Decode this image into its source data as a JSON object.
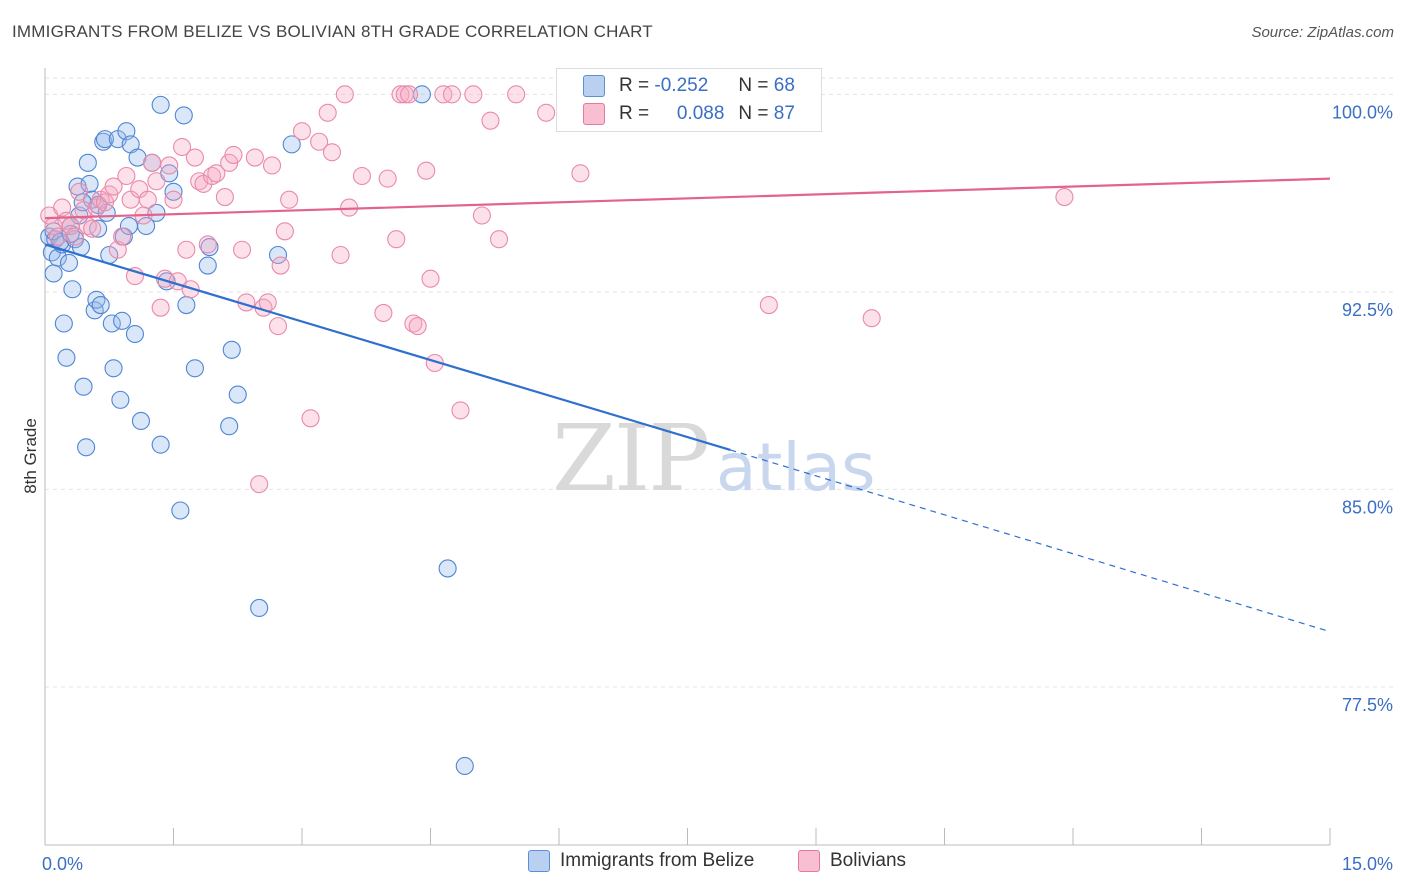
{
  "header": {
    "title": "IMMIGRANTS FROM BELIZE VS BOLIVIAN 8TH GRADE CORRELATION CHART",
    "source": "Source: ZipAtlas.com"
  },
  "legend": {
    "series": [
      {
        "name": "Immigrants from Belize",
        "r_label": "R =",
        "r_value": "-0.252",
        "n_label": "N =",
        "n_value": "68",
        "color": "#5b8fd6",
        "fill": "#b9d0f0"
      },
      {
        "name": "Bolivians",
        "r_label": "R =",
        "r_value": "0.088",
        "n_label": "N =",
        "n_value": "87",
        "color": "#e8789d",
        "fill": "#f7bfd1"
      }
    ]
  },
  "watermark": {
    "zip": "ZIP",
    "atlas": "atlas"
  },
  "chart_data": {
    "type": "scatter",
    "title": "IMMIGRANTS FROM BELIZE VS BOLIVIAN 8TH GRADE CORRELATION CHART",
    "xlabel": "",
    "ylabel": "8th Grade",
    "xlim": [
      0,
      15
    ],
    "ylim": [
      71.5,
      101
    ],
    "x_tick_labels": [
      "0.0%",
      "15.0%"
    ],
    "y_ticks": [
      77.5,
      85.0,
      92.5,
      100.0
    ],
    "y_tick_labels": [
      "77.5%",
      "85.0%",
      "92.5%",
      "100.0%"
    ],
    "grid": true,
    "series": [
      {
        "name": "Immigrants from Belize",
        "color": "#3575d3",
        "points": [
          [
            0.05,
            94.6
          ],
          [
            0.08,
            94.0
          ],
          [
            0.1,
            93.2
          ],
          [
            0.12,
            94.5
          ],
          [
            0.15,
            93.8
          ],
          [
            0.2,
            94.3
          ],
          [
            0.22,
            91.3
          ],
          [
            0.25,
            90.0
          ],
          [
            0.28,
            93.6
          ],
          [
            0.3,
            95.0
          ],
          [
            0.32,
            92.6
          ],
          [
            0.35,
            94.5
          ],
          [
            0.38,
            96.5
          ],
          [
            0.4,
            95.4
          ],
          [
            0.42,
            94.2
          ],
          [
            0.45,
            88.9
          ],
          [
            0.48,
            86.6
          ],
          [
            0.5,
            97.4
          ],
          [
            0.52,
            96.6
          ],
          [
            0.55,
            96.0
          ],
          [
            0.58,
            91.8
          ],
          [
            0.6,
            92.2
          ],
          [
            0.62,
            95.8
          ],
          [
            0.65,
            92.0
          ],
          [
            0.68,
            98.2
          ],
          [
            0.7,
            98.3
          ],
          [
            0.72,
            95.5
          ],
          [
            0.75,
            93.9
          ],
          [
            0.78,
            91.3
          ],
          [
            0.8,
            89.6
          ],
          [
            0.85,
            98.3
          ],
          [
            0.88,
            88.4
          ],
          [
            0.9,
            91.4
          ],
          [
            0.92,
            94.6
          ],
          [
            0.95,
            98.6
          ],
          [
            0.98,
            95.0
          ],
          [
            1.0,
            98.1
          ],
          [
            1.05,
            90.9
          ],
          [
            1.08,
            97.6
          ],
          [
            1.12,
            87.6
          ],
          [
            1.18,
            95.0
          ],
          [
            1.25,
            97.4
          ],
          [
            1.3,
            95.5
          ],
          [
            1.35,
            86.7
          ],
          [
            1.35,
            99.6
          ],
          [
            1.42,
            92.9
          ],
          [
            1.45,
            97.0
          ],
          [
            1.5,
            96.3
          ],
          [
            1.58,
            84.2
          ],
          [
            1.62,
            99.2
          ],
          [
            1.65,
            92.0
          ],
          [
            1.75,
            89.6
          ],
          [
            1.9,
            93.5
          ],
          [
            1.92,
            94.2
          ],
          [
            2.15,
            87.4
          ],
          [
            2.18,
            90.3
          ],
          [
            2.25,
            88.6
          ],
          [
            2.5,
            80.5
          ],
          [
            2.72,
            93.9
          ],
          [
            2.88,
            98.1
          ],
          [
            4.4,
            100.0
          ],
          [
            4.7,
            82.0
          ],
          [
            4.9,
            74.5
          ],
          [
            0.1,
            94.8
          ],
          [
            0.18,
            94.4
          ],
          [
            0.3,
            94.7
          ],
          [
            0.44,
            95.9
          ],
          [
            0.62,
            94.9
          ]
        ]
      },
      {
        "name": "Bolivians",
        "color": "#e56f96",
        "points": [
          [
            0.05,
            95.4
          ],
          [
            0.1,
            95.0
          ],
          [
            0.15,
            94.6
          ],
          [
            0.2,
            95.7
          ],
          [
            0.25,
            95.2
          ],
          [
            0.3,
            95.0
          ],
          [
            0.35,
            94.6
          ],
          [
            0.4,
            96.3
          ],
          [
            0.45,
            95.6
          ],
          [
            0.5,
            95.0
          ],
          [
            0.55,
            94.9
          ],
          [
            0.6,
            95.7
          ],
          [
            0.65,
            96.0
          ],
          [
            0.7,
            95.9
          ],
          [
            0.75,
            96.2
          ],
          [
            0.8,
            96.5
          ],
          [
            0.85,
            94.1
          ],
          [
            0.9,
            94.6
          ],
          [
            0.95,
            96.9
          ],
          [
            1.0,
            96.0
          ],
          [
            1.05,
            93.1
          ],
          [
            1.1,
            96.4
          ],
          [
            1.15,
            95.4
          ],
          [
            1.2,
            96.0
          ],
          [
            1.25,
            97.4
          ],
          [
            1.3,
            96.7
          ],
          [
            1.35,
            91.9
          ],
          [
            1.4,
            93.0
          ],
          [
            1.45,
            97.3
          ],
          [
            1.5,
            96.0
          ],
          [
            1.55,
            92.9
          ],
          [
            1.6,
            98.0
          ],
          [
            1.65,
            94.1
          ],
          [
            1.7,
            92.6
          ],
          [
            1.75,
            97.6
          ],
          [
            1.8,
            96.7
          ],
          [
            1.85,
            96.6
          ],
          [
            1.9,
            94.3
          ],
          [
            1.95,
            96.9
          ],
          [
            2.0,
            97.0
          ],
          [
            2.1,
            96.1
          ],
          [
            2.15,
            97.4
          ],
          [
            2.2,
            97.7
          ],
          [
            2.3,
            94.1
          ],
          [
            2.35,
            92.1
          ],
          [
            2.45,
            97.6
          ],
          [
            2.5,
            85.2
          ],
          [
            2.55,
            91.9
          ],
          [
            2.6,
            92.1
          ],
          [
            2.65,
            97.3
          ],
          [
            2.72,
            91.2
          ],
          [
            2.75,
            93.5
          ],
          [
            2.8,
            94.8
          ],
          [
            2.85,
            96.0
          ],
          [
            3.0,
            98.6
          ],
          [
            3.1,
            87.7
          ],
          [
            3.2,
            98.2
          ],
          [
            3.3,
            99.3
          ],
          [
            3.35,
            97.8
          ],
          [
            3.45,
            93.9
          ],
          [
            3.5,
            100.0
          ],
          [
            3.55,
            95.7
          ],
          [
            3.7,
            96.9
          ],
          [
            3.95,
            91.7
          ],
          [
            4.0,
            96.8
          ],
          [
            4.1,
            94.5
          ],
          [
            4.15,
            100.0
          ],
          [
            4.2,
            100.0
          ],
          [
            4.25,
            100.0
          ],
          [
            4.3,
            91.3
          ],
          [
            4.35,
            91.2
          ],
          [
            4.45,
            97.1
          ],
          [
            4.5,
            93.0
          ],
          [
            4.55,
            89.8
          ],
          [
            4.65,
            100.0
          ],
          [
            4.75,
            100.0
          ],
          [
            4.85,
            88.0
          ],
          [
            5.0,
            100.0
          ],
          [
            5.1,
            95.4
          ],
          [
            5.2,
            99.0
          ],
          [
            5.3,
            94.5
          ],
          [
            5.5,
            100.0
          ],
          [
            5.85,
            99.3
          ],
          [
            6.25,
            97.0
          ],
          [
            8.45,
            92.0
          ],
          [
            9.65,
            91.5
          ],
          [
            11.9,
            96.1
          ]
        ]
      }
    ],
    "trend_lines": [
      {
        "series": "Immigrants from Belize",
        "x": [
          0,
          8.0,
          15.0
        ],
        "y": [
          94.3,
          86.5,
          79.6
        ],
        "solid_until": 8.0
      },
      {
        "series": "Bolivians",
        "x": [
          0,
          15.0
        ],
        "y": [
          95.3,
          96.8
        ]
      }
    ]
  }
}
